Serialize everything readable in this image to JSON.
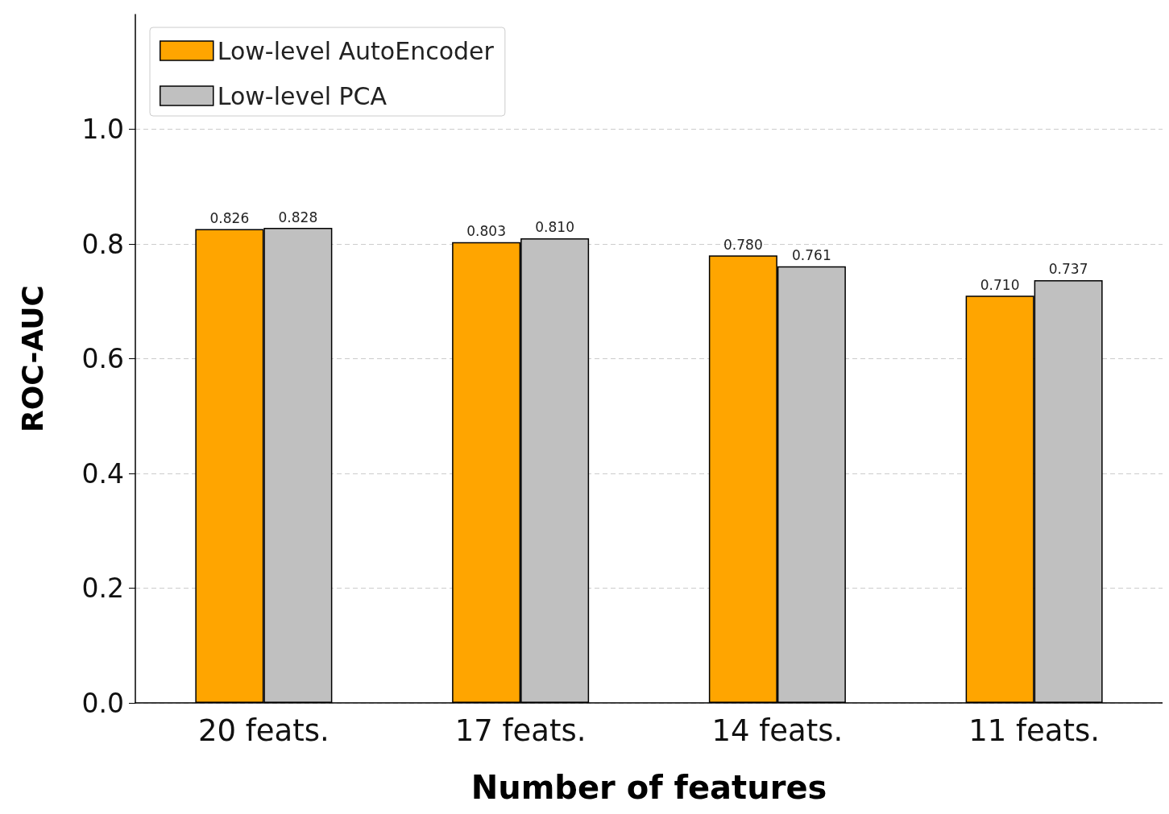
{
  "chart_data": {
    "type": "bar",
    "xlabel": "Number of features",
    "ylabel": "ROC-AUC",
    "categories": [
      "20 feats.",
      "17 feats.",
      "14 feats.",
      "11 feats."
    ],
    "series": [
      {
        "name": "Low-level AutoEncoder",
        "color": "#ffa500",
        "values": [
          0.826,
          0.803,
          0.78,
          0.71
        ],
        "value_labels": [
          "0.826",
          "0.803",
          "0.780",
          "0.710"
        ]
      },
      {
        "name": "Low-level PCA",
        "color": "#c0c0c0",
        "values": [
          0.828,
          0.81,
          0.761,
          0.737
        ],
        "value_labels": [
          "0.828",
          "0.810",
          "0.761",
          "0.737"
        ]
      }
    ],
    "ylim": [
      0,
      1.2
    ],
    "yticks": [
      {
        "value": 0,
        "label": "0.0"
      },
      0.2,
      0.4,
      0.6,
      0.8,
      {
        "value": 1,
        "label": "1.0"
      }
    ],
    "grid": "y",
    "legend": "top left"
  }
}
